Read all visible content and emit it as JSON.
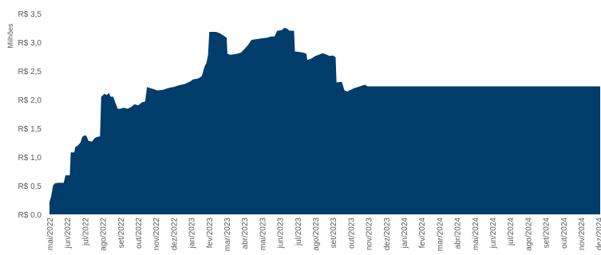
{
  "chart_data": {
    "type": "area",
    "title": "",
    "xlabel": "",
    "ylabel": "Milhões",
    "ylim": [
      0,
      3.5
    ],
    "y_ticks": [
      "R$ 0,0",
      "R$ 0,5",
      "R$ 1,0",
      "R$ 1,5",
      "R$ 2,0",
      "R$ 2,5",
      "R$ 3,0",
      "R$ 3,5"
    ],
    "y_tick_values": [
      0,
      0.5,
      1.0,
      1.5,
      2.0,
      2.5,
      3.0,
      3.5
    ],
    "x_ticks": [
      "mai/2022",
      "jun/2022",
      "jul/2022",
      "ago/2022",
      "set/2022",
      "out/2022",
      "nov/2022",
      "dez/2022",
      "jan/2023",
      "fev/2023",
      "mar/2023",
      "abr/2023",
      "mai/2023",
      "jun/2023",
      "jul/2023",
      "ago/2023",
      "set/2023",
      "out/2023",
      "nov/2023",
      "dez/2023",
      "jan/2024",
      "fev/2024",
      "mar/2024",
      "abr/2024",
      "mai/2024",
      "jun/2024",
      "jul/2024",
      "ago/2024",
      "set/2024",
      "out/2024",
      "nov/2024",
      "dez/2024"
    ],
    "grid": false,
    "legend": "none",
    "color": "#003d6b",
    "series": [
      {
        "values": [
          [
            0.0,
            0.22
          ],
          [
            0.1,
            0.32
          ],
          [
            0.2,
            0.5
          ],
          [
            0.3,
            0.54
          ],
          [
            0.5,
            0.55
          ],
          [
            0.8,
            0.55
          ],
          [
            0.9,
            0.68
          ],
          [
            1.15,
            0.68
          ],
          [
            1.2,
            1.08
          ],
          [
            1.4,
            1.08
          ],
          [
            1.45,
            1.17
          ],
          [
            1.6,
            1.2
          ],
          [
            1.75,
            1.25
          ],
          [
            1.85,
            1.35
          ],
          [
            2.0,
            1.38
          ],
          [
            2.1,
            1.36
          ],
          [
            2.2,
            1.28
          ],
          [
            2.4,
            1.27
          ],
          [
            2.55,
            1.33
          ],
          [
            2.7,
            1.35
          ],
          [
            2.85,
            1.36
          ],
          [
            2.92,
            2.05
          ],
          [
            3.1,
            2.1
          ],
          [
            3.25,
            2.08
          ],
          [
            3.35,
            2.12
          ],
          [
            3.45,
            2.05
          ],
          [
            3.6,
            2.05
          ],
          [
            3.75,
            1.92
          ],
          [
            3.85,
            1.84
          ],
          [
            4.0,
            1.84
          ],
          [
            4.2,
            1.86
          ],
          [
            4.4,
            1.84
          ],
          [
            4.6,
            1.87
          ],
          [
            4.8,
            1.92
          ],
          [
            5.0,
            1.9
          ],
          [
            5.2,
            1.95
          ],
          [
            5.4,
            1.97
          ],
          [
            5.5,
            2.22
          ],
          [
            5.7,
            2.2
          ],
          [
            5.9,
            2.18
          ],
          [
            6.1,
            2.16
          ],
          [
            6.4,
            2.17
          ],
          [
            6.6,
            2.19
          ],
          [
            6.8,
            2.21
          ],
          [
            7.0,
            2.22
          ],
          [
            7.3,
            2.25
          ],
          [
            7.6,
            2.27
          ],
          [
            7.9,
            2.31
          ],
          [
            8.1,
            2.35
          ],
          [
            8.4,
            2.37
          ],
          [
            8.6,
            2.41
          ],
          [
            8.75,
            2.58
          ],
          [
            8.85,
            2.63
          ],
          [
            8.95,
            2.78
          ],
          [
            9.02,
            3.18
          ],
          [
            9.2,
            3.18
          ],
          [
            9.4,
            3.18
          ],
          [
            9.6,
            3.16
          ],
          [
            9.8,
            3.12
          ],
          [
            10.0,
            3.08
          ],
          [
            10.04,
            2.8
          ],
          [
            10.2,
            2.78
          ],
          [
            10.4,
            2.79
          ],
          [
            10.6,
            2.8
          ],
          [
            10.8,
            2.82
          ],
          [
            11.0,
            2.88
          ],
          [
            11.2,
            2.95
          ],
          [
            11.4,
            3.04
          ],
          [
            11.6,
            3.05
          ],
          [
            11.8,
            3.06
          ],
          [
            12.0,
            3.07
          ],
          [
            12.3,
            3.08
          ],
          [
            12.5,
            3.1
          ],
          [
            12.7,
            3.1
          ],
          [
            12.85,
            3.2
          ],
          [
            13.1,
            3.21
          ],
          [
            13.25,
            3.25
          ],
          [
            13.4,
            3.24
          ],
          [
            13.55,
            3.2
          ],
          [
            13.8,
            3.2
          ],
          [
            13.85,
            2.84
          ],
          [
            14.1,
            2.83
          ],
          [
            14.3,
            2.82
          ],
          [
            14.5,
            2.8
          ],
          [
            14.55,
            2.69
          ],
          [
            14.8,
            2.72
          ],
          [
            15.0,
            2.76
          ],
          [
            15.2,
            2.78
          ],
          [
            15.4,
            2.81
          ],
          [
            15.6,
            2.79
          ],
          [
            15.8,
            2.76
          ],
          [
            16.0,
            2.77
          ],
          [
            16.15,
            2.74
          ],
          [
            16.2,
            2.3
          ],
          [
            16.5,
            2.31
          ],
          [
            16.65,
            2.16
          ],
          [
            16.8,
            2.14
          ],
          [
            17.0,
            2.17
          ],
          [
            17.2,
            2.2
          ],
          [
            17.4,
            2.22
          ],
          [
            17.6,
            2.24
          ],
          [
            17.8,
            2.26
          ],
          [
            17.95,
            2.23
          ]
        ]
      }
    ]
  }
}
